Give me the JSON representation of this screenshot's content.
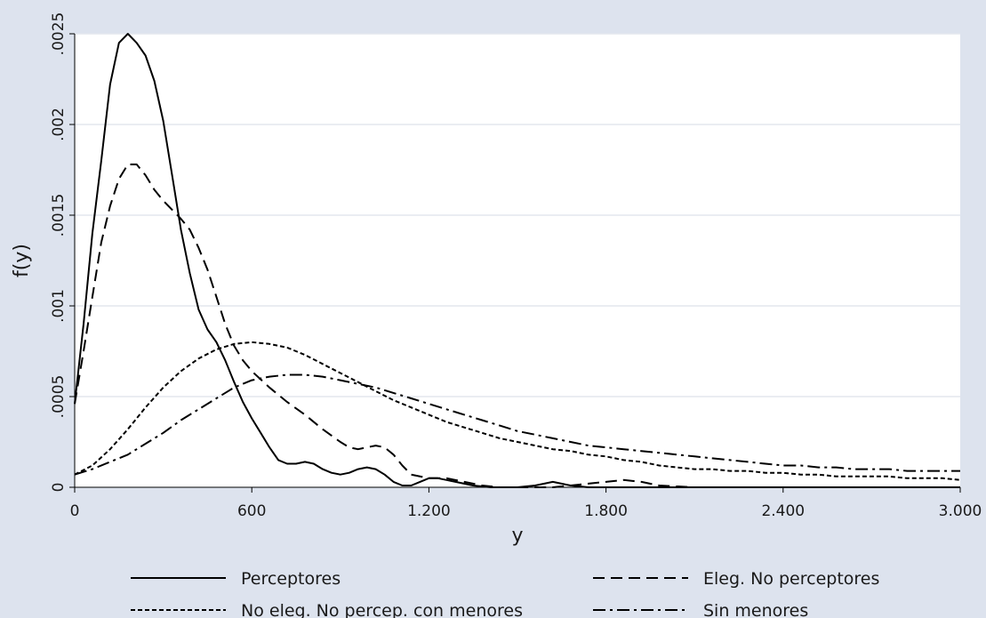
{
  "chart_data": {
    "type": "line",
    "title": "",
    "xlabel": "y",
    "ylabel": "f(y)",
    "xlim": [
      0,
      3000
    ],
    "ylim": [
      0,
      0.0025
    ],
    "x_ticks": [
      0,
      600,
      1200,
      1800,
      2400,
      3000
    ],
    "x_tick_labels": [
      "0",
      "600",
      "1.200",
      "1.800",
      "2.400",
      "3.000"
    ],
    "y_ticks": [
      0,
      0.0005,
      0.001,
      0.0015,
      0.002,
      0.0025
    ],
    "y_tick_labels": [
      "0",
      ".0005",
      ".001",
      ".0015",
      ".002",
      ".0025"
    ],
    "grid": "horizontal",
    "legend_position": "bottom",
    "plot_background": "#ffffff",
    "figure_background": "#dde3ee",
    "series": [
      {
        "name": "Perceptores",
        "style": "solid",
        "color": "#000000",
        "points": [
          [
            0,
            0.00046
          ],
          [
            30,
            0.0009
          ],
          [
            60,
            0.0014
          ],
          [
            90,
            0.0018
          ],
          [
            120,
            0.00222
          ],
          [
            150,
            0.00245
          ],
          [
            180,
            0.0025
          ],
          [
            210,
            0.00245
          ],
          [
            240,
            0.00238
          ],
          [
            270,
            0.00224
          ],
          [
            300,
            0.00202
          ],
          [
            330,
            0.00172
          ],
          [
            360,
            0.00142
          ],
          [
            390,
            0.00118
          ],
          [
            420,
            0.00098
          ],
          [
            450,
            0.00087
          ],
          [
            480,
            0.0008
          ],
          [
            510,
            0.0007
          ],
          [
            540,
            0.00058
          ],
          [
            570,
            0.00047
          ],
          [
            600,
            0.00038
          ],
          [
            630,
            0.0003
          ],
          [
            660,
            0.00022
          ],
          [
            690,
            0.00015
          ],
          [
            720,
            0.00013
          ],
          [
            750,
            0.00013
          ],
          [
            780,
            0.00014
          ],
          [
            810,
            0.00013
          ],
          [
            840,
            0.0001
          ],
          [
            870,
            8e-05
          ],
          [
            900,
            7e-05
          ],
          [
            930,
            8e-05
          ],
          [
            960,
            0.0001
          ],
          [
            990,
            0.00011
          ],
          [
            1020,
            0.0001
          ],
          [
            1050,
            7e-05
          ],
          [
            1080,
            3e-05
          ],
          [
            1110,
            1e-05
          ],
          [
            1140,
            1e-05
          ],
          [
            1170,
            3e-05
          ],
          [
            1200,
            5e-05
          ],
          [
            1230,
            5e-05
          ],
          [
            1260,
            4e-05
          ],
          [
            1290,
            3e-05
          ],
          [
            1350,
            1e-05
          ],
          [
            1410,
            0
          ],
          [
            1500,
            0
          ],
          [
            1560,
            1e-05
          ],
          [
            1620,
            3e-05
          ],
          [
            1680,
            1e-05
          ],
          [
            1740,
            0
          ],
          [
            1800,
            0
          ],
          [
            2100,
            0
          ],
          [
            3000,
            0
          ]
        ]
      },
      {
        "name": "Eleg. No perceptores",
        "style": "dashed",
        "color": "#000000",
        "points": [
          [
            0,
            0.00046
          ],
          [
            30,
            0.00075
          ],
          [
            60,
            0.00105
          ],
          [
            90,
            0.00135
          ],
          [
            120,
            0.00155
          ],
          [
            150,
            0.0017
          ],
          [
            180,
            0.00178
          ],
          [
            210,
            0.00178
          ],
          [
            240,
            0.00172
          ],
          [
            270,
            0.00164
          ],
          [
            300,
            0.00158
          ],
          [
            330,
            0.00153
          ],
          [
            360,
            0.00148
          ],
          [
            390,
            0.00142
          ],
          [
            420,
            0.00132
          ],
          [
            450,
            0.0012
          ],
          [
            480,
            0.00105
          ],
          [
            510,
            0.0009
          ],
          [
            540,
            0.00078
          ],
          [
            570,
            0.0007
          ],
          [
            600,
            0.00064
          ],
          [
            660,
            0.00055
          ],
          [
            720,
            0.00047
          ],
          [
            780,
            0.0004
          ],
          [
            840,
            0.00032
          ],
          [
            900,
            0.00025
          ],
          [
            930,
            0.00022
          ],
          [
            960,
            0.00021
          ],
          [
            990,
            0.00022
          ],
          [
            1020,
            0.00023
          ],
          [
            1050,
            0.00022
          ],
          [
            1080,
            0.00018
          ],
          [
            1110,
            0.00012
          ],
          [
            1140,
            7e-05
          ],
          [
            1200,
            5e-05
          ],
          [
            1260,
            5e-05
          ],
          [
            1320,
            3e-05
          ],
          [
            1380,
            1e-05
          ],
          [
            1440,
            0
          ],
          [
            1500,
            0
          ],
          [
            1620,
            0
          ],
          [
            1680,
            1e-05
          ],
          [
            1740,
            2e-05
          ],
          [
            1800,
            3e-05
          ],
          [
            1860,
            4e-05
          ],
          [
            1920,
            3e-05
          ],
          [
            1980,
            1e-05
          ],
          [
            2100,
            0
          ],
          [
            3000,
            0
          ]
        ]
      },
      {
        "name": "No eleg. No percep. con menores",
        "style": "dotted",
        "color": "#000000",
        "points": [
          [
            0,
            7e-05
          ],
          [
            60,
            0.00012
          ],
          [
            120,
            0.00021
          ],
          [
            180,
            0.00032
          ],
          [
            240,
            0.00044
          ],
          [
            300,
            0.00055
          ],
          [
            360,
            0.00064
          ],
          [
            420,
            0.00071
          ],
          [
            480,
            0.00076
          ],
          [
            540,
            0.00079
          ],
          [
            600,
            0.0008
          ],
          [
            660,
            0.00079
          ],
          [
            720,
            0.00077
          ],
          [
            780,
            0.00073
          ],
          [
            840,
            0.00068
          ],
          [
            900,
            0.00063
          ],
          [
            960,
            0.00058
          ],
          [
            1020,
            0.00053
          ],
          [
            1080,
            0.00048
          ],
          [
            1140,
            0.00044
          ],
          [
            1200,
            0.0004
          ],
          [
            1260,
            0.00036
          ],
          [
            1320,
            0.00033
          ],
          [
            1380,
            0.0003
          ],
          [
            1440,
            0.00027
          ],
          [
            1500,
            0.00025
          ],
          [
            1560,
            0.00023
          ],
          [
            1620,
            0.00021
          ],
          [
            1680,
            0.0002
          ],
          [
            1740,
            0.00018
          ],
          [
            1800,
            0.00017
          ],
          [
            1860,
            0.00015
          ],
          [
            1920,
            0.00014
          ],
          [
            1980,
            0.00012
          ],
          [
            2040,
            0.00011
          ],
          [
            2100,
            0.0001
          ],
          [
            2160,
            0.0001
          ],
          [
            2220,
            9e-05
          ],
          [
            2280,
            9e-05
          ],
          [
            2340,
            8e-05
          ],
          [
            2400,
            8e-05
          ],
          [
            2460,
            7e-05
          ],
          [
            2520,
            7e-05
          ],
          [
            2580,
            6e-05
          ],
          [
            2640,
            6e-05
          ],
          [
            2700,
            6e-05
          ],
          [
            2760,
            6e-05
          ],
          [
            2820,
            5e-05
          ],
          [
            2880,
            5e-05
          ],
          [
            2940,
            5e-05
          ],
          [
            3000,
            4e-05
          ]
        ]
      },
      {
        "name": "Sin menores",
        "style": "dashdot",
        "color": "#000000",
        "points": [
          [
            0,
            7e-05
          ],
          [
            60,
            0.0001
          ],
          [
            120,
            0.00014
          ],
          [
            180,
            0.00018
          ],
          [
            240,
            0.00024
          ],
          [
            300,
            0.0003
          ],
          [
            360,
            0.00037
          ],
          [
            420,
            0.00043
          ],
          [
            480,
            0.00049
          ],
          [
            540,
            0.00055
          ],
          [
            600,
            0.00059
          ],
          [
            660,
            0.00061
          ],
          [
            720,
            0.00062
          ],
          [
            780,
            0.00062
          ],
          [
            840,
            0.00061
          ],
          [
            900,
            0.00059
          ],
          [
            960,
            0.00057
          ],
          [
            1020,
            0.00055
          ],
          [
            1080,
            0.00052
          ],
          [
            1140,
            0.00049
          ],
          [
            1200,
            0.00046
          ],
          [
            1260,
            0.00043
          ],
          [
            1320,
            0.0004
          ],
          [
            1380,
            0.00037
          ],
          [
            1440,
            0.00034
          ],
          [
            1500,
            0.00031
          ],
          [
            1560,
            0.00029
          ],
          [
            1620,
            0.00027
          ],
          [
            1680,
            0.00025
          ],
          [
            1740,
            0.00023
          ],
          [
            1800,
            0.00022
          ],
          [
            1860,
            0.00021
          ],
          [
            1920,
            0.0002
          ],
          [
            1980,
            0.00019
          ],
          [
            2040,
            0.00018
          ],
          [
            2100,
            0.00017
          ],
          [
            2160,
            0.00016
          ],
          [
            2220,
            0.00015
          ],
          [
            2280,
            0.00014
          ],
          [
            2340,
            0.00013
          ],
          [
            2400,
            0.00012
          ],
          [
            2460,
            0.00012
          ],
          [
            2520,
            0.00011
          ],
          [
            2580,
            0.00011
          ],
          [
            2640,
            0.0001
          ],
          [
            2700,
            0.0001
          ],
          [
            2760,
            0.0001
          ],
          [
            2820,
            9e-05
          ],
          [
            2880,
            9e-05
          ],
          [
            2940,
            9e-05
          ],
          [
            3000,
            9e-05
          ]
        ]
      }
    ]
  }
}
